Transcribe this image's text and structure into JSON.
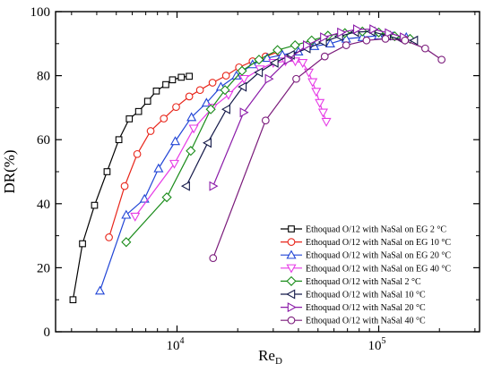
{
  "chart_data": {
    "type": "line",
    "xlabel": "Re",
    "xlabel_sub": "D",
    "ylabel": "DR(%)",
    "xscale": "log",
    "xlim": [
      2500,
      316228
    ],
    "ylim": [
      0,
      100
    ],
    "yticks": [
      0,
      20,
      40,
      60,
      80,
      100
    ],
    "xticks": [
      {
        "value": 10000,
        "base": "10",
        "exp": "4"
      },
      {
        "value": 100000,
        "base": "10",
        "exp": "5"
      }
    ],
    "grid": false,
    "legend_position": "bottom-right",
    "series": [
      {
        "name": "Ethoquad O/12 with NaSal on EG 2 °C",
        "color": "#000000",
        "marker": "square",
        "points": [
          [
            3050,
            10
          ],
          [
            3400,
            27.5
          ],
          [
            3900,
            39.5
          ],
          [
            4500,
            50
          ],
          [
            5150,
            60
          ],
          [
            5800,
            66.5
          ],
          [
            6450,
            68.8
          ],
          [
            7150,
            72
          ],
          [
            7900,
            75.2
          ],
          [
            8800,
            77.2
          ],
          [
            9500,
            78.7
          ],
          [
            10500,
            79.5
          ],
          [
            11500,
            79.8
          ]
        ]
      },
      {
        "name": "Ethoquad O/12 with NaSal on EG 10 °C",
        "color": "#e8251a",
        "marker": "circle",
        "points": [
          [
            4600,
            29.5
          ],
          [
            5500,
            45.5
          ],
          [
            6350,
            55.5
          ],
          [
            7400,
            62.7
          ],
          [
            8600,
            66.6
          ],
          [
            9900,
            70.2
          ],
          [
            11500,
            73.5
          ],
          [
            13000,
            75.5
          ],
          [
            15000,
            77.8
          ],
          [
            17500,
            80
          ],
          [
            20300,
            82.6
          ],
          [
            23700,
            84.5
          ],
          [
            27500,
            86
          ],
          [
            32000,
            87.5
          ]
        ]
      },
      {
        "name": "Ethoquad O/12 with NaSal on EG 20 °C",
        "color": "#2145d6",
        "marker": "triangle-up",
        "points": [
          [
            4150,
            12.8
          ],
          [
            5600,
            36.5
          ],
          [
            6900,
            41.5
          ],
          [
            8100,
            51
          ],
          [
            9800,
            59.5
          ],
          [
            11800,
            67
          ],
          [
            14000,
            71.5
          ],
          [
            16500,
            76.5
          ],
          [
            19700,
            80
          ],
          [
            23700,
            83.5
          ],
          [
            28000,
            85.5
          ],
          [
            33300,
            86.5
          ],
          [
            40000,
            87.5
          ],
          [
            48000,
            89.2
          ],
          [
            57500,
            90
          ],
          [
            69000,
            91.5
          ],
          [
            83000,
            92
          ],
          [
            100000,
            92.5
          ],
          [
            118000,
            92.3
          ],
          [
            137000,
            92
          ]
        ]
      },
      {
        "name": "Ethoquad O/12 with NaSal on EG 40 °C",
        "color": "#e63ae6",
        "marker": "triangle-down",
        "points": [
          [
            6200,
            36
          ],
          [
            9700,
            52.5
          ],
          [
            12100,
            63.5
          ],
          [
            15000,
            70
          ],
          [
            18000,
            74
          ],
          [
            21500,
            79
          ],
          [
            25800,
            82
          ],
          [
            30000,
            84
          ],
          [
            34500,
            84.5
          ],
          [
            38600,
            84.5
          ],
          [
            42000,
            84
          ],
          [
            45000,
            81
          ],
          [
            47000,
            78
          ],
          [
            49000,
            75
          ],
          [
            51000,
            71.5
          ],
          [
            53000,
            68.5
          ],
          [
            55000,
            65.6
          ]
        ]
      },
      {
        "name": "Ethoquad O/12 with NaSal 2 °C",
        "color": "#1a8c1a",
        "marker": "diamond",
        "points": [
          [
            5600,
            28
          ],
          [
            8900,
            42
          ],
          [
            11700,
            56.5
          ],
          [
            14700,
            69.5
          ],
          [
            17300,
            75.5
          ],
          [
            21000,
            81.5
          ],
          [
            25500,
            85
          ],
          [
            31500,
            88
          ],
          [
            38500,
            89.5
          ],
          [
            46500,
            91
          ],
          [
            56000,
            92.5
          ],
          [
            68000,
            93.3
          ],
          [
            83000,
            93.8
          ],
          [
            100000,
            93.5
          ],
          [
            120000,
            92.3
          ],
          [
            143000,
            91.5
          ]
        ]
      },
      {
        "name": "Ethoquad O/12 with NaSal 10 °C",
        "color": "#151a4a",
        "marker": "triangle-left",
        "points": [
          [
            11100,
            45.5
          ],
          [
            14200,
            59
          ],
          [
            17600,
            69.5
          ],
          [
            21200,
            76.5
          ],
          [
            25500,
            81
          ],
          [
            30500,
            84
          ],
          [
            36700,
            86.5
          ],
          [
            44000,
            88.5
          ],
          [
            53000,
            90.5
          ],
          [
            63800,
            92.3
          ],
          [
            76500,
            93.6
          ],
          [
            92000,
            93.8
          ],
          [
            110000,
            92.5
          ],
          [
            130000,
            91.2
          ],
          [
            150000,
            91
          ]
        ]
      },
      {
        "name": "Ethoquad O/12 with NaSal 20 °C",
        "color": "#8a1aa8",
        "marker": "triangle-right",
        "points": [
          [
            15100,
            45.5
          ],
          [
            21400,
            68.5
          ],
          [
            28500,
            79
          ],
          [
            35600,
            85
          ],
          [
            44000,
            89.5
          ],
          [
            53500,
            92
          ],
          [
            65000,
            93.5
          ],
          [
            78000,
            94.5
          ],
          [
            94000,
            94.5
          ],
          [
            112000,
            93.3
          ],
          [
            133000,
            92
          ]
        ]
      },
      {
        "name": "Ethoquad O/12 with NaSal 40 °C",
        "color": "#7a1a7a",
        "marker": "circle",
        "points": [
          [
            15100,
            23
          ],
          [
            27500,
            66
          ],
          [
            39000,
            79
          ],
          [
            54000,
            86
          ],
          [
            69000,
            89.5
          ],
          [
            87000,
            91
          ],
          [
            108000,
            91.5
          ],
          [
            135000,
            91
          ],
          [
            170000,
            88.5
          ],
          [
            205000,
            85
          ]
        ]
      }
    ]
  }
}
